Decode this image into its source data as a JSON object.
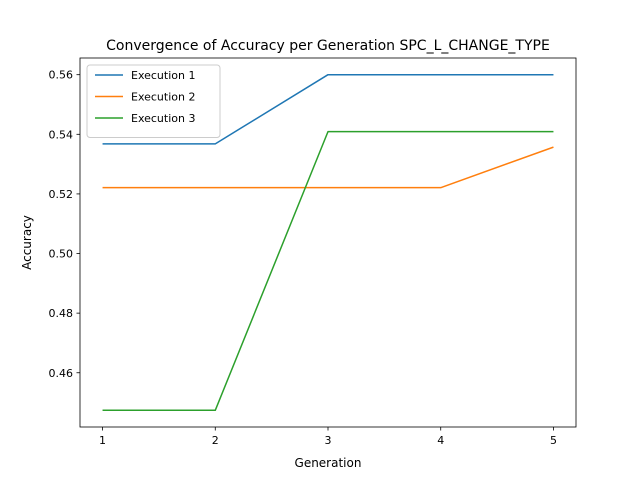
{
  "chart_data": {
    "type": "line",
    "title": "Convergence of Accuracy per Generation SPC_L_CHANGE_TYPE",
    "xlabel": "Generation",
    "ylabel": "Accuracy",
    "x": [
      1,
      2,
      3,
      4,
      5
    ],
    "xticks": [
      "1",
      "2",
      "3",
      "4",
      "5"
    ],
    "xlim": [
      0.8,
      5.2
    ],
    "yticks": [
      "0.46",
      "0.48",
      "0.50",
      "0.52",
      "0.54",
      "0.56"
    ],
    "ylim": [
      0.4418,
      0.5656
    ],
    "grid": false,
    "legend_position": "top-left",
    "series": [
      {
        "name": "Execution 1",
        "color": "#1f77b4",
        "values": [
          0.5368,
          0.5368,
          0.56,
          0.56,
          0.56
        ]
      },
      {
        "name": "Execution 2",
        "color": "#ff7f0e",
        "values": [
          0.5221,
          0.5221,
          0.5221,
          0.5221,
          0.5357
        ]
      },
      {
        "name": "Execution 3",
        "color": "#2ca02c",
        "values": [
          0.4474,
          0.4474,
          0.5409,
          0.5409,
          0.5409
        ]
      }
    ]
  }
}
